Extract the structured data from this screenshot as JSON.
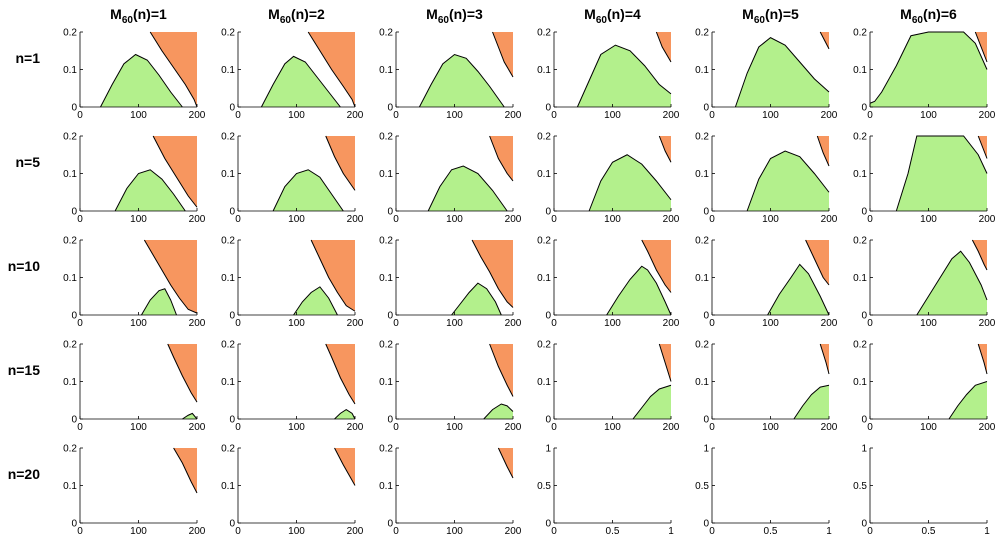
{
  "colors": {
    "green": "#b3f08c",
    "orange": "#f7965f",
    "stroke": "#000000"
  },
  "column_titles": [
    {
      "base": "M",
      "sub": "60",
      "tail": "(n)=1"
    },
    {
      "base": "M",
      "sub": "60",
      "tail": "(n)=2"
    },
    {
      "base": "M",
      "sub": "60",
      "tail": "(n)=3"
    },
    {
      "base": "M",
      "sub": "60",
      "tail": "(n)=4"
    },
    {
      "base": "M",
      "sub": "60",
      "tail": "(n)=5"
    },
    {
      "base": "M",
      "sub": "60",
      "tail": "(n)=6"
    }
  ],
  "row_titles": [
    "n=1",
    "n=5",
    "n=10",
    "n=15",
    "n=20"
  ],
  "chart_data": {
    "type": "area",
    "grid": false,
    "default_axes": {
      "xlim": [
        0,
        200
      ],
      "ylim": [
        0,
        0.2
      ],
      "xticks": [
        "0",
        "100",
        "200"
      ],
      "yticks": [
        "0",
        "0.1",
        "0.2"
      ]
    },
    "empty_axes": {
      "xlim": [
        0,
        1
      ],
      "ylim": [
        0,
        1
      ],
      "xticks": [
        "0",
        "0.5",
        "1"
      ],
      "yticks": [
        "0",
        "0.5",
        "1"
      ]
    },
    "panels": [
      {
        "row": 0,
        "col": 0,
        "orange": {
          "x": [
            120,
            140,
            160,
            180,
            195,
            200
          ],
          "y": [
            0.2,
            0.15,
            0.105,
            0.06,
            0.02,
            0
          ]
        },
        "green": {
          "x": [
            35,
            55,
            75,
            95,
            115,
            135,
            155,
            175
          ],
          "y": [
            0,
            0.06,
            0.115,
            0.14,
            0.125,
            0.085,
            0.04,
            0
          ]
        }
      },
      {
        "row": 0,
        "col": 1,
        "orange": {
          "x": [
            120,
            140,
            160,
            180,
            195,
            200
          ],
          "y": [
            0.2,
            0.15,
            0.1,
            0.055,
            0.02,
            0
          ]
        },
        "green": {
          "x": [
            40,
            60,
            80,
            95,
            115,
            135,
            155,
            175
          ],
          "y": [
            0,
            0.06,
            0.115,
            0.135,
            0.12,
            0.08,
            0.04,
            0
          ]
        }
      },
      {
        "row": 0,
        "col": 2,
        "orange": {
          "x": [
            165,
            175,
            185,
            200
          ],
          "y": [
            0.2,
            0.16,
            0.12,
            0.08
          ]
        },
        "green": {
          "x": [
            40,
            60,
            80,
            100,
            120,
            140,
            160,
            185
          ],
          "y": [
            0,
            0.06,
            0.115,
            0.14,
            0.13,
            0.095,
            0.055,
            0
          ]
        }
      },
      {
        "row": 0,
        "col": 3,
        "orange": {
          "x": [
            175,
            185,
            200
          ],
          "y": [
            0.2,
            0.16,
            0.12
          ]
        },
        "green": {
          "x": [
            40,
            60,
            80,
            105,
            130,
            155,
            180,
            200
          ],
          "y": [
            0,
            0.07,
            0.14,
            0.165,
            0.15,
            0.11,
            0.06,
            0.035
          ]
        }
      },
      {
        "row": 0,
        "col": 4,
        "orange": {
          "x": [
            185,
            200
          ],
          "y": [
            0.2,
            0.155
          ]
        },
        "green": {
          "x": [
            40,
            60,
            80,
            100,
            125,
            150,
            175,
            200
          ],
          "y": [
            0,
            0.09,
            0.16,
            0.185,
            0.165,
            0.12,
            0.075,
            0.04
          ]
        }
      },
      {
        "row": 0,
        "col": 5,
        "orange": {
          "x": [
            180,
            190,
            200
          ],
          "y": [
            0.2,
            0.16,
            0.12
          ]
        },
        "green": {
          "x": [
            0,
            8,
            20,
            45,
            70,
            100,
            130,
            160,
            180,
            200
          ],
          "y": [
            0.01,
            0.015,
            0.04,
            0.11,
            0.19,
            0.2,
            0.2,
            0.2,
            0.17,
            0.1
          ]
        }
      },
      {
        "row": 1,
        "col": 0,
        "orange": {
          "x": [
            125,
            145,
            165,
            185,
            200
          ],
          "y": [
            0.2,
            0.14,
            0.09,
            0.04,
            0.01
          ]
        },
        "green": {
          "x": [
            60,
            80,
            100,
            120,
            140,
            160,
            180
          ],
          "y": [
            0,
            0.06,
            0.1,
            0.11,
            0.085,
            0.045,
            0
          ]
        }
      },
      {
        "row": 1,
        "col": 1,
        "orange": {
          "x": [
            150,
            165,
            180,
            200
          ],
          "y": [
            0.2,
            0.145,
            0.1,
            0.055
          ]
        },
        "green": {
          "x": [
            60,
            80,
            100,
            120,
            140,
            160,
            180
          ],
          "y": [
            0,
            0.065,
            0.1,
            0.11,
            0.09,
            0.045,
            0
          ]
        }
      },
      {
        "row": 1,
        "col": 2,
        "orange": {
          "x": [
            160,
            175,
            190,
            200
          ],
          "y": [
            0.2,
            0.14,
            0.1,
            0.08
          ]
        },
        "green": {
          "x": [
            55,
            75,
            95,
            115,
            140,
            165,
            190
          ],
          "y": [
            0,
            0.065,
            0.11,
            0.12,
            0.1,
            0.055,
            0
          ]
        }
      },
      {
        "row": 1,
        "col": 3,
        "orange": {
          "x": [
            180,
            190,
            200
          ],
          "y": [
            0.2,
            0.16,
            0.13
          ]
        },
        "green": {
          "x": [
            60,
            80,
            100,
            125,
            150,
            175,
            200
          ],
          "y": [
            0,
            0.08,
            0.13,
            0.15,
            0.125,
            0.08,
            0.03
          ]
        }
      },
      {
        "row": 1,
        "col": 4,
        "orange": {
          "x": [
            180,
            190,
            200
          ],
          "y": [
            0.2,
            0.155,
            0.12
          ]
        },
        "green": {
          "x": [
            60,
            80,
            100,
            125,
            150,
            175,
            200
          ],
          "y": [
            0,
            0.085,
            0.14,
            0.16,
            0.145,
            0.1,
            0.05
          ]
        }
      },
      {
        "row": 1,
        "col": 5,
        "orange": {
          "x": [
            185,
            195,
            200
          ],
          "y": [
            0.2,
            0.16,
            0.14
          ]
        },
        "green": {
          "x": [
            45,
            65,
            80,
            100,
            130,
            160,
            185,
            200
          ],
          "y": [
            0,
            0.1,
            0.2,
            0.2,
            0.2,
            0.2,
            0.15,
            0.1
          ]
        }
      },
      {
        "row": 2,
        "col": 0,
        "orange": {
          "x": [
            110,
            125,
            140,
            155,
            170,
            185,
            200
          ],
          "y": [
            0.2,
            0.16,
            0.12,
            0.08,
            0.045,
            0.015,
            0.005
          ]
        },
        "green": {
          "x": [
            105,
            120,
            135,
            145,
            155,
            165
          ],
          "y": [
            0,
            0.04,
            0.065,
            0.07,
            0.04,
            0
          ]
        }
      },
      {
        "row": 2,
        "col": 1,
        "orange": {
          "x": [
            125,
            140,
            155,
            170,
            185,
            200
          ],
          "y": [
            0.2,
            0.15,
            0.1,
            0.06,
            0.025,
            0.01
          ]
        },
        "green": {
          "x": [
            95,
            110,
            125,
            140,
            155,
            170
          ],
          "y": [
            0,
            0.035,
            0.06,
            0.075,
            0.045,
            0
          ]
        }
      },
      {
        "row": 2,
        "col": 2,
        "orange": {
          "x": [
            130,
            145,
            160,
            175,
            190,
            200
          ],
          "y": [
            0.2,
            0.155,
            0.115,
            0.07,
            0.035,
            0.02
          ]
        },
        "green": {
          "x": [
            95,
            110,
            125,
            140,
            155,
            170,
            180
          ],
          "y": [
            0,
            0.03,
            0.06,
            0.085,
            0.07,
            0.035,
            0
          ]
        }
      },
      {
        "row": 2,
        "col": 3,
        "orange": {
          "x": [
            150,
            160,
            175,
            190,
            200
          ],
          "y": [
            0.2,
            0.17,
            0.12,
            0.08,
            0.06
          ]
        },
        "green": {
          "x": [
            90,
            110,
            130,
            150,
            160,
            175,
            190,
            200
          ],
          "y": [
            0,
            0.05,
            0.095,
            0.13,
            0.12,
            0.085,
            0.035,
            0
          ]
        }
      },
      {
        "row": 2,
        "col": 4,
        "orange": {
          "x": [
            160,
            175,
            190,
            200
          ],
          "y": [
            0.2,
            0.15,
            0.1,
            0.08
          ]
        },
        "green": {
          "x": [
            95,
            115,
            135,
            150,
            165,
            185,
            200
          ],
          "y": [
            0,
            0.055,
            0.1,
            0.135,
            0.11,
            0.05,
            0
          ]
        }
      },
      {
        "row": 2,
        "col": 5,
        "orange": {
          "x": [
            175,
            185,
            195,
            200
          ],
          "y": [
            0.2,
            0.17,
            0.135,
            0.12
          ]
        },
        "green": {
          "x": [
            80,
            100,
            120,
            140,
            155,
            170,
            190,
            200
          ],
          "y": [
            0,
            0.05,
            0.1,
            0.15,
            0.17,
            0.14,
            0.08,
            0.04
          ]
        }
      },
      {
        "row": 3,
        "col": 0,
        "orange": {
          "x": [
            150,
            160,
            175,
            190,
            200
          ],
          "y": [
            0.2,
            0.165,
            0.115,
            0.07,
            0.045
          ]
        },
        "green": {
          "x": [
            175,
            185,
            192,
            200
          ],
          "y": [
            0,
            0.01,
            0.015,
            0
          ]
        }
      },
      {
        "row": 3,
        "col": 1,
        "orange": {
          "x": [
            150,
            160,
            175,
            190,
            200
          ],
          "y": [
            0.2,
            0.165,
            0.11,
            0.065,
            0.04
          ]
        },
        "green": {
          "x": [
            165,
            175,
            185,
            195,
            200
          ],
          "y": [
            0,
            0.015,
            0.025,
            0.015,
            0
          ]
        }
      },
      {
        "row": 3,
        "col": 2,
        "orange": {
          "x": [
            160,
            175,
            190,
            200
          ],
          "y": [
            0.2,
            0.14,
            0.09,
            0.06
          ]
        },
        "green": {
          "x": [
            150,
            165,
            180,
            190,
            200
          ],
          "y": [
            0,
            0.025,
            0.04,
            0.035,
            0.02
          ]
        }
      },
      {
        "row": 3,
        "col": 3,
        "orange": {
          "x": [
            180,
            190,
            200
          ],
          "y": [
            0.2,
            0.15,
            0.1
          ]
        },
        "green": {
          "x": [
            135,
            150,
            165,
            180,
            200
          ],
          "y": [
            0,
            0.03,
            0.06,
            0.08,
            0.09
          ]
        }
      },
      {
        "row": 3,
        "col": 4,
        "orange": {
          "x": [
            185,
            195,
            200
          ],
          "y": [
            0.2,
            0.15,
            0.12
          ]
        },
        "green": {
          "x": [
            140,
            155,
            170,
            185,
            200
          ],
          "y": [
            0,
            0.035,
            0.065,
            0.085,
            0.09
          ]
        }
      },
      {
        "row": 3,
        "col": 5,
        "orange": {
          "x": [
            185,
            195,
            200
          ],
          "y": [
            0.2,
            0.15,
            0.12
          ]
        },
        "green": {
          "x": [
            135,
            150,
            165,
            180,
            200
          ],
          "y": [
            0,
            0.035,
            0.065,
            0.09,
            0.1
          ]
        }
      },
      {
        "row": 4,
        "col": 0,
        "orange": {
          "x": [
            160,
            175,
            190,
            200
          ],
          "y": [
            0.2,
            0.16,
            0.11,
            0.08
          ]
        },
        "green": null
      },
      {
        "row": 4,
        "col": 1,
        "orange": {
          "x": [
            165,
            180,
            200
          ],
          "y": [
            0.2,
            0.155,
            0.1
          ]
        },
        "green": null
      },
      {
        "row": 4,
        "col": 2,
        "orange": {
          "x": [
            175,
            190,
            200
          ],
          "y": [
            0.2,
            0.15,
            0.12
          ]
        },
        "green": null
      },
      {
        "row": 4,
        "col": 3,
        "empty": true
      },
      {
        "row": 4,
        "col": 4,
        "empty": true
      },
      {
        "row": 4,
        "col": 5,
        "empty": true
      }
    ]
  }
}
